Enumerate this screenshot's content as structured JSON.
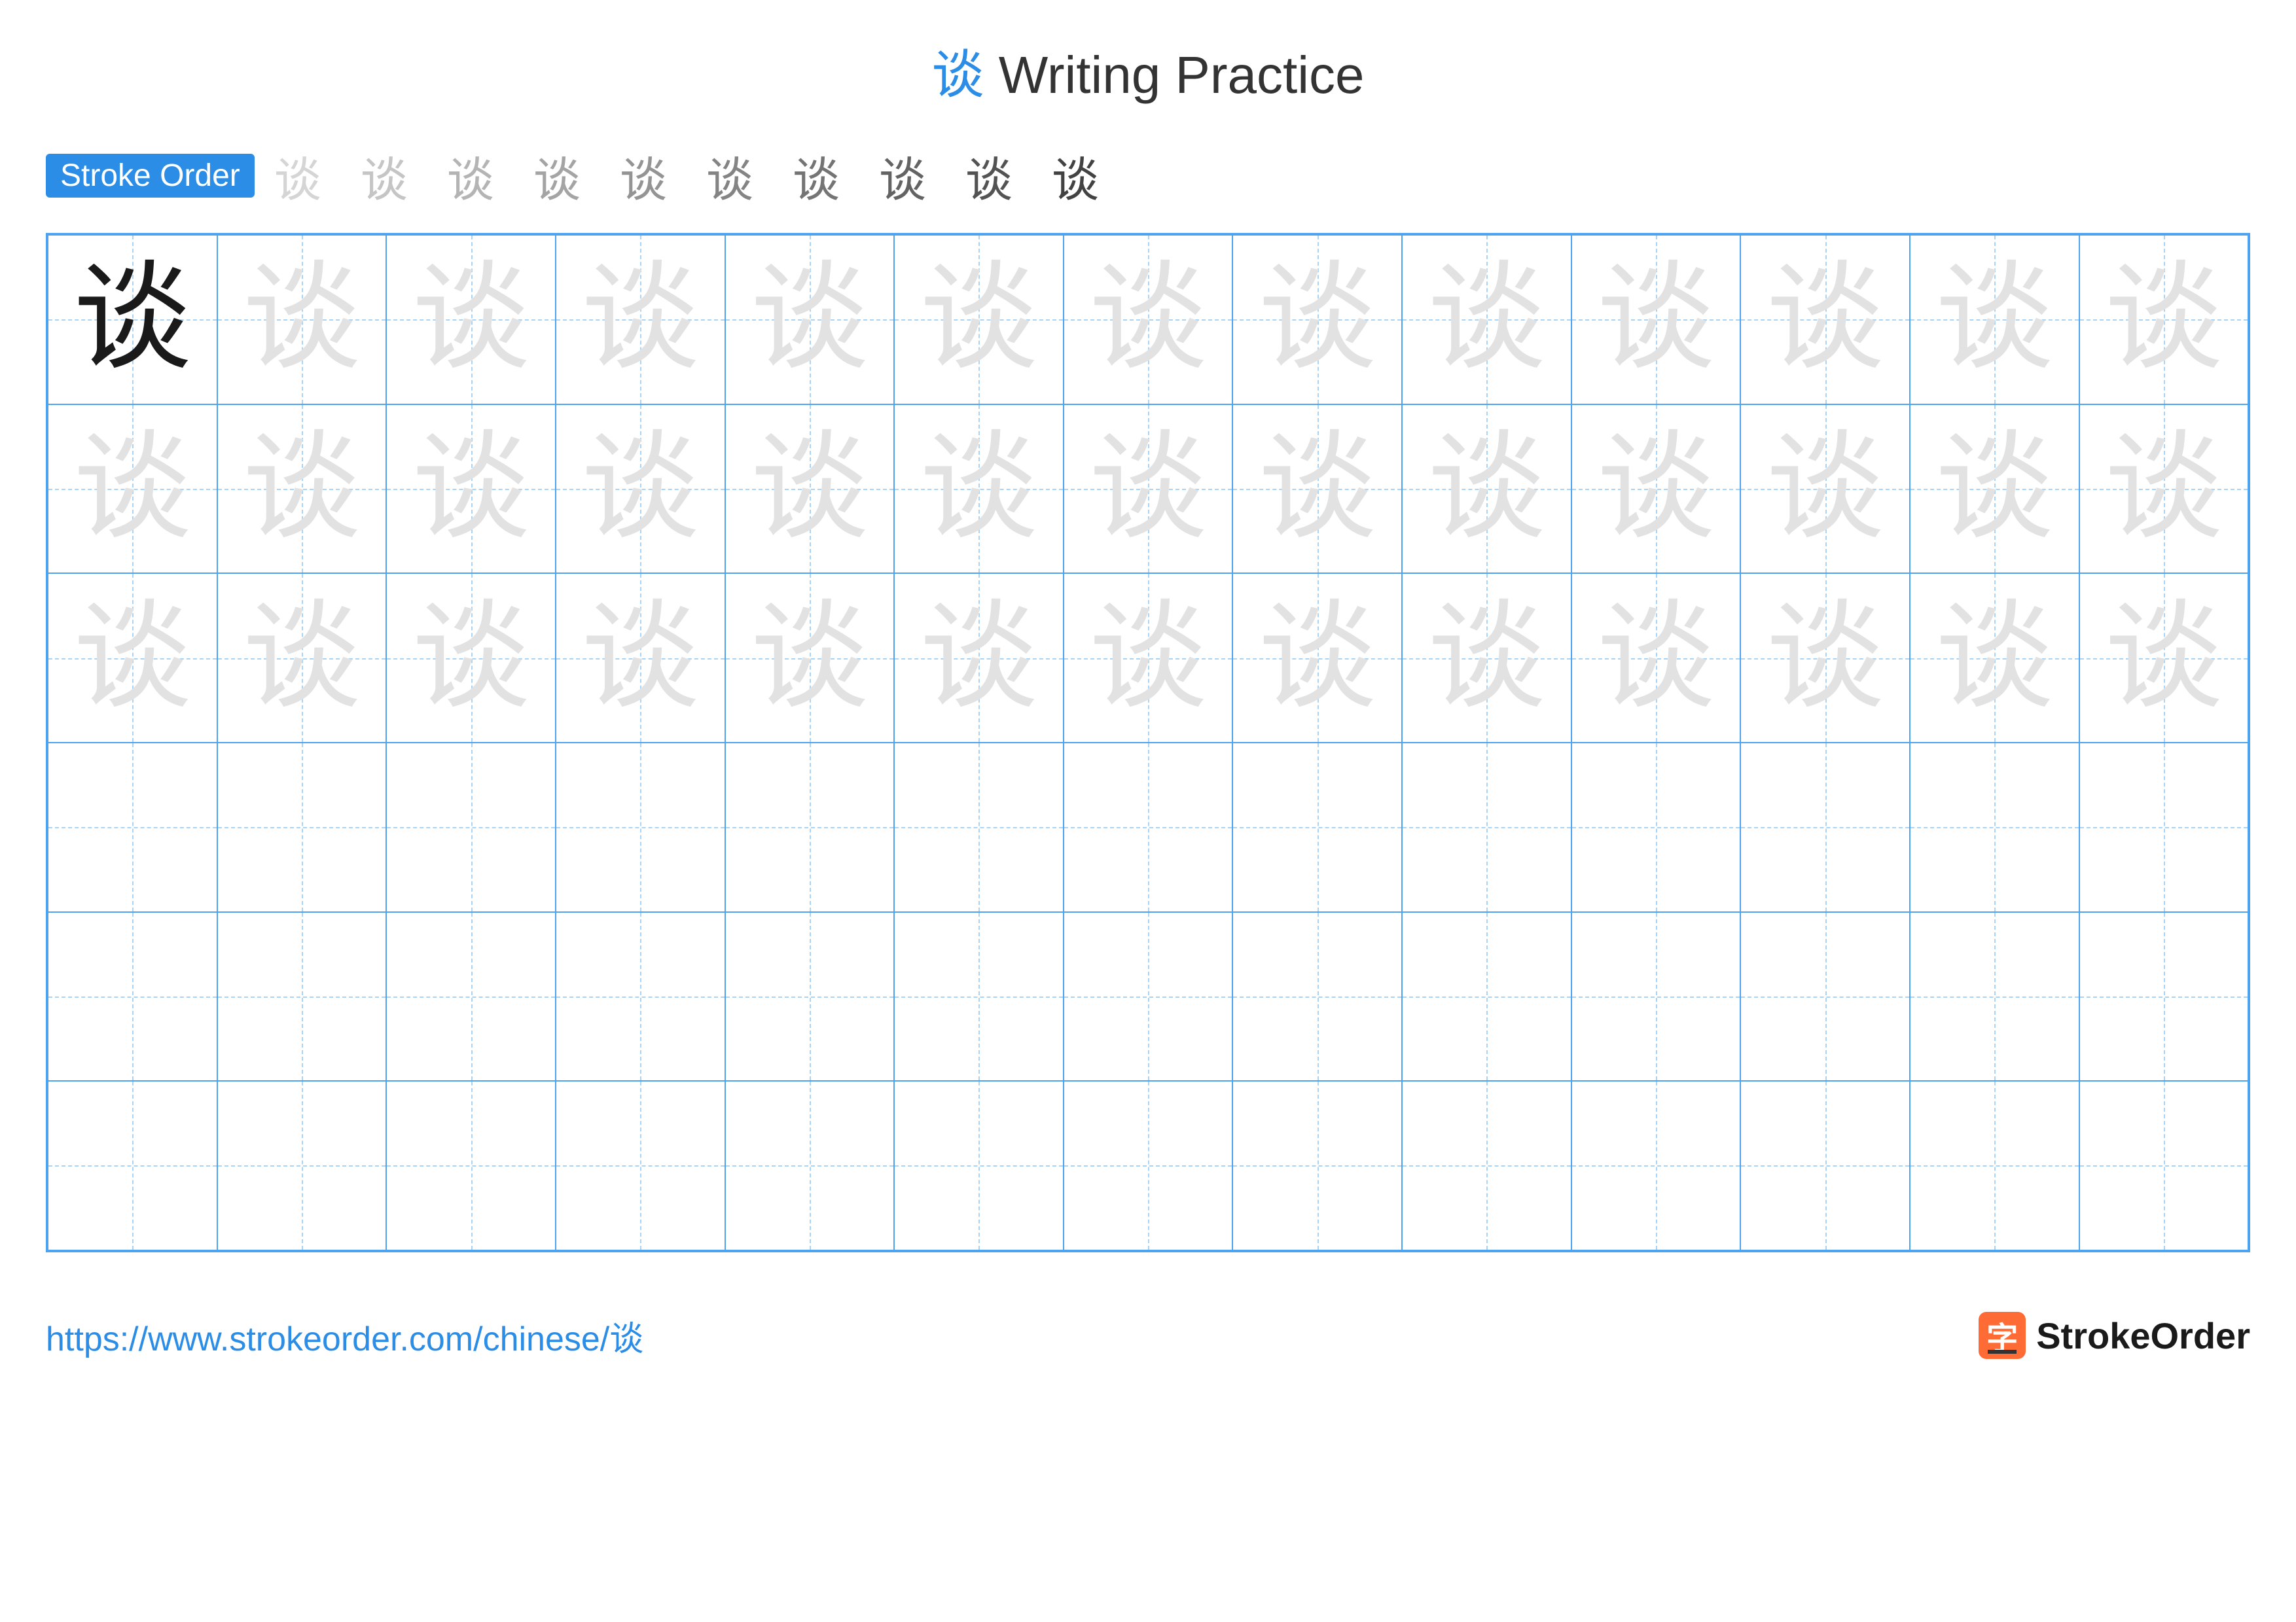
{
  "title": {
    "character": "谈",
    "text": "Writing Practice",
    "color_char": "#2b8de6",
    "color_text": "#333333"
  },
  "stroke_order": {
    "label": "Stroke Order",
    "label_bg": "#2b8de6",
    "label_color": "#ffffff",
    "steps": [
      "、",
      "讠",
      "讠",
      "讠",
      "讠",
      "讠炎",
      "谈",
      "谈",
      "谈",
      "谈"
    ]
  },
  "grid": {
    "rows": 6,
    "cols": 13,
    "border_color": "#4da3f0",
    "guide_color": "#a8d4f7",
    "character": "谈",
    "main_color": "#1a1a1a",
    "trace_color": "#e2e2e2",
    "trace_rows": 3
  },
  "footer": {
    "url": "https://www.strokeorder.com/chinese/谈",
    "url_color": "#2b8de6",
    "logo_icon": "字",
    "logo_icon_bg": "#ff6b35",
    "logo_text": "StrokeOrder"
  }
}
